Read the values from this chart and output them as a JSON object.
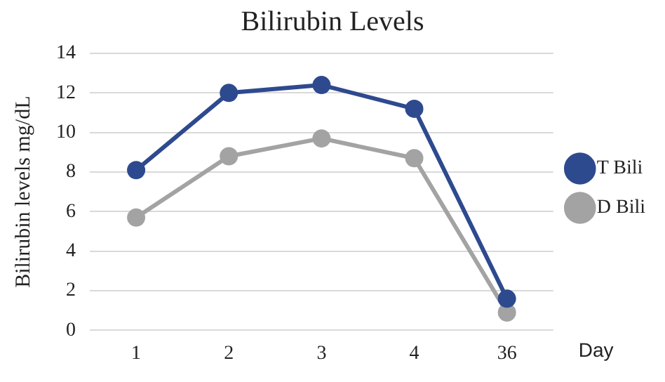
{
  "chart_data": {
    "type": "line",
    "title": "Bilirubin Levels",
    "xlabel": "Day",
    "ylabel": "Bilirubin levels mg/dL",
    "categories": [
      "1",
      "2",
      "3",
      "4",
      "36"
    ],
    "series": [
      {
        "name": "T Bili",
        "color": "#2e4a8f",
        "values": [
          8.1,
          12.0,
          12.4,
          11.2,
          1.6
        ]
      },
      {
        "name": "D Bili",
        "color": "#a3a3a3",
        "values": [
          5.7,
          8.8,
          9.7,
          8.7,
          0.9
        ]
      }
    ],
    "ylim": [
      0,
      14
    ],
    "yticks": [
      0,
      2,
      4,
      6,
      8,
      10,
      12,
      14
    ],
    "grid": "y",
    "legend": "right",
    "marker": "circle",
    "line_style": "solid"
  }
}
